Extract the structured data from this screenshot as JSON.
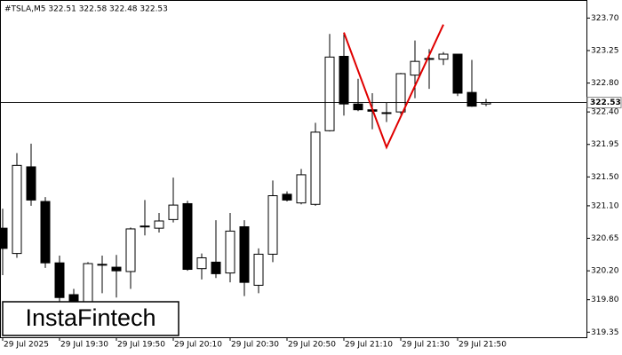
{
  "chart_data": {
    "type": "candlestick",
    "title": "#TSLA,M5  322.51 322.58 322.48 322.53",
    "categories": [
      "29 Jul 2025",
      null,
      null,
      null,
      "29 Jul 19:30",
      null,
      null,
      null,
      "29 Jul 19:50",
      null,
      null,
      null,
      "29 Jul 20:10",
      null,
      null,
      null,
      "29 Jul 20:30",
      null,
      null,
      null,
      "29 Jul 20:50",
      null,
      null,
      null,
      "29 Jul 21:10",
      null,
      null,
      null,
      "29 Jul 21:30",
      null,
      null,
      null,
      "29 Jul 21:50",
      null,
      null
    ],
    "open": [
      320.79,
      320.44,
      321.64,
      321.16,
      320.31,
      319.87,
      319.77,
      320.28,
      320.25,
      320.19,
      320.82,
      320.79,
      320.91,
      321.13,
      320.23,
      320.32,
      320.17,
      320.81,
      320.0,
      320.43,
      321.26,
      321.14,
      321.12,
      322.14,
      323.17,
      322.51,
      322.43,
      322.38,
      322.4,
      322.91,
      323.13,
      323.13,
      323.2,
      322.67,
      322.51
    ],
    "high": [
      321.06,
      321.83,
      321.96,
      321.22,
      320.41,
      319.95,
      320.32,
      320.41,
      320.42,
      320.8,
      321.18,
      321.0,
      321.49,
      321.17,
      320.44,
      320.9,
      321.0,
      320.9,
      320.51,
      321.45,
      321.3,
      321.61,
      322.25,
      323.48,
      323.49,
      322.86,
      322.66,
      322.53,
      322.94,
      323.39,
      323.27,
      323.23,
      323.2,
      323.12,
      322.58
    ],
    "low": [
      320.14,
      320.38,
      321.1,
      320.24,
      319.77,
      319.58,
      319.71,
      319.89,
      319.83,
      319.95,
      320.69,
      320.73,
      320.87,
      320.2,
      320.08,
      320.1,
      320.04,
      319.85,
      319.89,
      320.32,
      321.16,
      321.12,
      321.1,
      322.13,
      322.35,
      322.41,
      322.16,
      322.26,
      322.37,
      322.59,
      322.72,
      323.05,
      322.62,
      322.47,
      322.48
    ],
    "close": [
      320.51,
      321.66,
      321.18,
      320.31,
      319.83,
      319.71,
      320.3,
      320.29,
      320.2,
      320.78,
      320.81,
      320.89,
      321.11,
      320.22,
      320.38,
      320.16,
      320.75,
      320.04,
      320.43,
      321.24,
      321.18,
      321.53,
      322.12,
      323.16,
      322.51,
      322.43,
      322.41,
      322.39,
      322.93,
      323.1,
      323.14,
      323.2,
      322.66,
      322.48,
      322.53
    ],
    "up_color": "#ffffff",
    "down_color": "#000000",
    "ylim": [
      319.28,
      323.95
    ],
    "yticks": [
      {
        "value": 323.7,
        "label": "323.70"
      },
      323.25,
      {
        "value": 322.8,
        "label": "322.80"
      },
      {
        "value": 322.4,
        "label": "322.40"
      },
      321.95,
      {
        "value": 321.5,
        "label": "321.50"
      },
      {
        "value": 321.1,
        "label": "321.10"
      },
      320.65,
      {
        "value": 320.2,
        "label": "320.20"
      },
      {
        "value": 319.8,
        "label": "319.80"
      },
      319.35
    ],
    "current_price": 322.53,
    "pattern": {
      "color": "#e00000",
      "x": [
        24,
        27,
        31
      ],
      "values": [
        323.5,
        321.91,
        323.61
      ]
    },
    "logo": "InstaFintech"
  }
}
